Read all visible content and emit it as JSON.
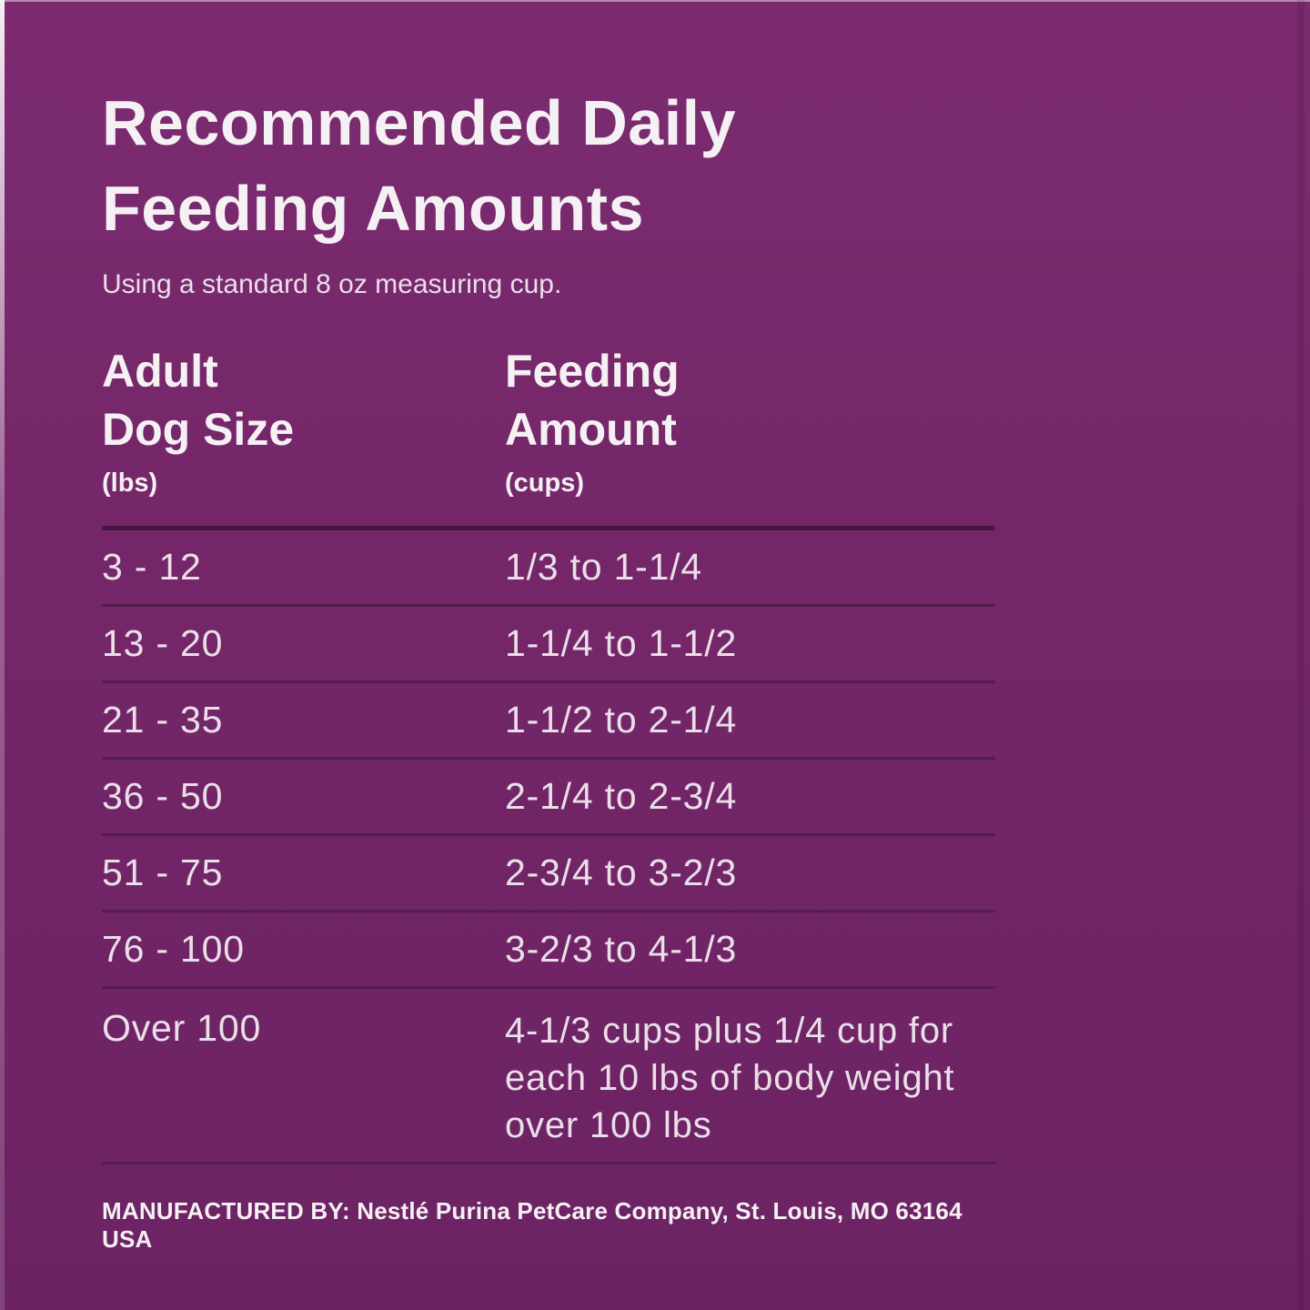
{
  "colors": {
    "background": "#742668",
    "background_top": "#7c2b70",
    "background_bottom": "#6c2363",
    "text_primary": "#f5f0f4",
    "text_secondary": "#eadfe8",
    "divider_dark": "#44193f",
    "row_separator": "#531d4d"
  },
  "header": {
    "title_line1": "Recommended Daily",
    "title_line2": "Feeding Amounts",
    "subtitle": "Using a standard 8 oz measuring cup."
  },
  "table": {
    "columns": [
      {
        "label_line1": "Adult",
        "label_line2": "Dog Size",
        "unit": "(lbs)"
      },
      {
        "label_line1": "Feeding",
        "label_line2": "Amount",
        "unit": "(cups)"
      }
    ],
    "rows": [
      {
        "dog_size_lbs": "3 - 12",
        "feeding_amount_cups": "1/3 to 1-1/4"
      },
      {
        "dog_size_lbs": "13 - 20",
        "feeding_amount_cups": "1-1/4 to 1-1/2"
      },
      {
        "dog_size_lbs": "21 - 35",
        "feeding_amount_cups": "1-1/2 to 2-1/4"
      },
      {
        "dog_size_lbs": "36 - 50",
        "feeding_amount_cups": "2-1/4 to 2-3/4"
      },
      {
        "dog_size_lbs": "51 - 75",
        "feeding_amount_cups": "2-3/4 to 3-2/3"
      },
      {
        "dog_size_lbs": "76 - 100",
        "feeding_amount_cups": "3-2/3 to 4-1/3"
      },
      {
        "dog_size_lbs": "Over 100",
        "feeding_amount_cups": "4-1/3 cups plus 1/4 cup for each 10 lbs of body weight over 100 lbs"
      }
    ]
  },
  "footer": {
    "manufactured_by": "MANUFACTURED BY: Nestlé Purina PetCare Company, St. Louis, MO 63164 USA"
  }
}
